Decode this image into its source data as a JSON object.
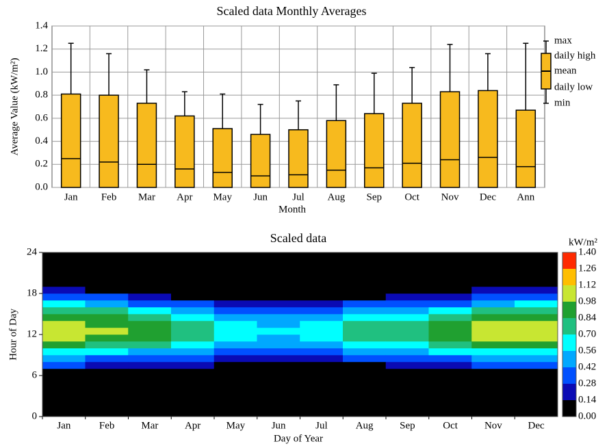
{
  "chart_data": [
    {
      "type": "box",
      "title": "Scaled data Monthly Averages",
      "x_label": "Month",
      "y_label": "Average Value (kW/m²)",
      "categories": [
        "Jan",
        "Feb",
        "Mar",
        "Apr",
        "May",
        "Jun",
        "Jul",
        "Aug",
        "Sep",
        "Oct",
        "Nov",
        "Dec",
        "Ann"
      ],
      "color": "#f7ba1e",
      "series": [
        {
          "name": "max",
          "values": [
            1.25,
            1.16,
            1.02,
            0.83,
            0.81,
            0.72,
            0.75,
            0.89,
            0.99,
            1.04,
            1.24,
            1.16,
            1.25
          ]
        },
        {
          "name": "daily high",
          "values": [
            0.81,
            0.8,
            0.73,
            0.62,
            0.51,
            0.46,
            0.5,
            0.58,
            0.64,
            0.73,
            0.83,
            0.84,
            0.67
          ]
        },
        {
          "name": "mean",
          "values": [
            0.25,
            0.22,
            0.2,
            0.16,
            0.13,
            0.1,
            0.11,
            0.15,
            0.17,
            0.21,
            0.24,
            0.26,
            0.18
          ]
        },
        {
          "name": "daily low",
          "values": [
            0,
            0,
            0,
            0,
            0,
            0,
            0,
            0,
            0,
            0,
            0,
            0,
            0
          ]
        },
        {
          "name": "min",
          "values": [
            0,
            0,
            0,
            0,
            0,
            0,
            0,
            0,
            0,
            0,
            0,
            0,
            0
          ]
        }
      ],
      "ylim": [
        0,
        1.4
      ],
      "yticks": [
        {
          "value": 0,
          "label": "0.0"
        },
        0.2,
        0.4,
        0.6,
        0.8,
        {
          "value": 1,
          "label": "1.0"
        },
        1.2,
        1.4
      ],
      "grid": true
    },
    {
      "type": "heatmap",
      "title": "Scaled data",
      "x_label": "Day of Year",
      "y_label": "Hour of Day",
      "categories": [
        "Jan",
        "Feb",
        "Mar",
        "Apr",
        "May",
        "Jun",
        "Jul",
        "Aug",
        "Sep",
        "Oct",
        "Nov",
        "Dec"
      ],
      "y": [
        0,
        1,
        2,
        3,
        4,
        5,
        6,
        7,
        8,
        9,
        10,
        11,
        12,
        13,
        14,
        15,
        16,
        17,
        18,
        19,
        20,
        21,
        22,
        23
      ],
      "ylim": [
        0,
        24
      ],
      "yticks": [
        0,
        6,
        12,
        18,
        24
      ],
      "z": [
        [
          0,
          0,
          0,
          0,
          0,
          0,
          0.1,
          0.3,
          0.45,
          0.65,
          0.85,
          1.0,
          1.1,
          1.05,
          0.95,
          0.8,
          0.6,
          0.4,
          0.2,
          0.05,
          0,
          0,
          0,
          0
        ],
        [
          0,
          0,
          0,
          0,
          0,
          0,
          0.05,
          0.25,
          0.4,
          0.6,
          0.8,
          0.95,
          1.0,
          0.95,
          0.85,
          0.7,
          0.5,
          0.3,
          0.1,
          0,
          0,
          0,
          0,
          0
        ],
        [
          0,
          0,
          0,
          0,
          0,
          0,
          0,
          0.2,
          0.35,
          0.55,
          0.75,
          0.9,
          0.95,
          0.9,
          0.8,
          0.6,
          0.4,
          0.2,
          0.05,
          0,
          0,
          0,
          0,
          0
        ],
        [
          0,
          0,
          0,
          0,
          0,
          0,
          0,
          0.15,
          0.3,
          0.45,
          0.6,
          0.7,
          0.75,
          0.7,
          0.6,
          0.45,
          0.3,
          0.1,
          0,
          0,
          0,
          0,
          0,
          0
        ],
        [
          0,
          0,
          0,
          0,
          0,
          0,
          0,
          0.05,
          0.25,
          0.4,
          0.5,
          0.6,
          0.62,
          0.6,
          0.5,
          0.4,
          0.25,
          0.05,
          0,
          0,
          0,
          0,
          0,
          0
        ],
        [
          0,
          0,
          0,
          0,
          0,
          0,
          0,
          0,
          0.2,
          0.35,
          0.45,
          0.55,
          0.58,
          0.55,
          0.45,
          0.35,
          0.2,
          0,
          0,
          0,
          0,
          0,
          0,
          0
        ],
        [
          0,
          0,
          0,
          0,
          0,
          0,
          0,
          0.05,
          0.22,
          0.38,
          0.5,
          0.58,
          0.6,
          0.58,
          0.5,
          0.38,
          0.22,
          0.05,
          0,
          0,
          0,
          0,
          0,
          0
        ],
        [
          0,
          0,
          0,
          0,
          0,
          0,
          0,
          0.1,
          0.28,
          0.45,
          0.6,
          0.7,
          0.72,
          0.7,
          0.6,
          0.45,
          0.28,
          0.1,
          0,
          0,
          0,
          0,
          0,
          0
        ],
        [
          0,
          0,
          0,
          0,
          0,
          0,
          0,
          0.15,
          0.32,
          0.5,
          0.68,
          0.78,
          0.82,
          0.78,
          0.68,
          0.5,
          0.32,
          0.15,
          0,
          0,
          0,
          0,
          0,
          0
        ],
        [
          0,
          0,
          0,
          0,
          0,
          0,
          0.05,
          0.2,
          0.38,
          0.58,
          0.75,
          0.88,
          0.92,
          0.88,
          0.75,
          0.58,
          0.38,
          0.2,
          0.05,
          0,
          0,
          0,
          0,
          0
        ],
        [
          0,
          0,
          0,
          0,
          0,
          0,
          0.1,
          0.3,
          0.45,
          0.65,
          0.85,
          1.0,
          1.08,
          1.0,
          0.9,
          0.75,
          0.55,
          0.35,
          0.15,
          0,
          0,
          0,
          0,
          0
        ],
        [
          0,
          0,
          0,
          0,
          0,
          0,
          0.1,
          0.3,
          0.45,
          0.65,
          0.85,
          1.0,
          1.1,
          1.05,
          0.95,
          0.8,
          0.6,
          0.4,
          0.2,
          0.05,
          0,
          0,
          0,
          0
        ]
      ],
      "colorbar": {
        "title": "kW/m²",
        "ticks": [
          {
            "value": 0,
            "label": "0.00"
          },
          0.14,
          0.28,
          0.42,
          0.56,
          {
            "value": 0.7,
            "label": "0.70"
          },
          0.84,
          0.98,
          1.12,
          1.26,
          {
            "value": 1.4,
            "label": "1.40"
          }
        ],
        "colors": [
          "#000000",
          "#0a0ab4",
          "#0050ff",
          "#00a8ff",
          "#00ffff",
          "#20c080",
          "#20a030",
          "#c8e632",
          "#ffbe00",
          "#ff2a00"
        ]
      }
    }
  ]
}
